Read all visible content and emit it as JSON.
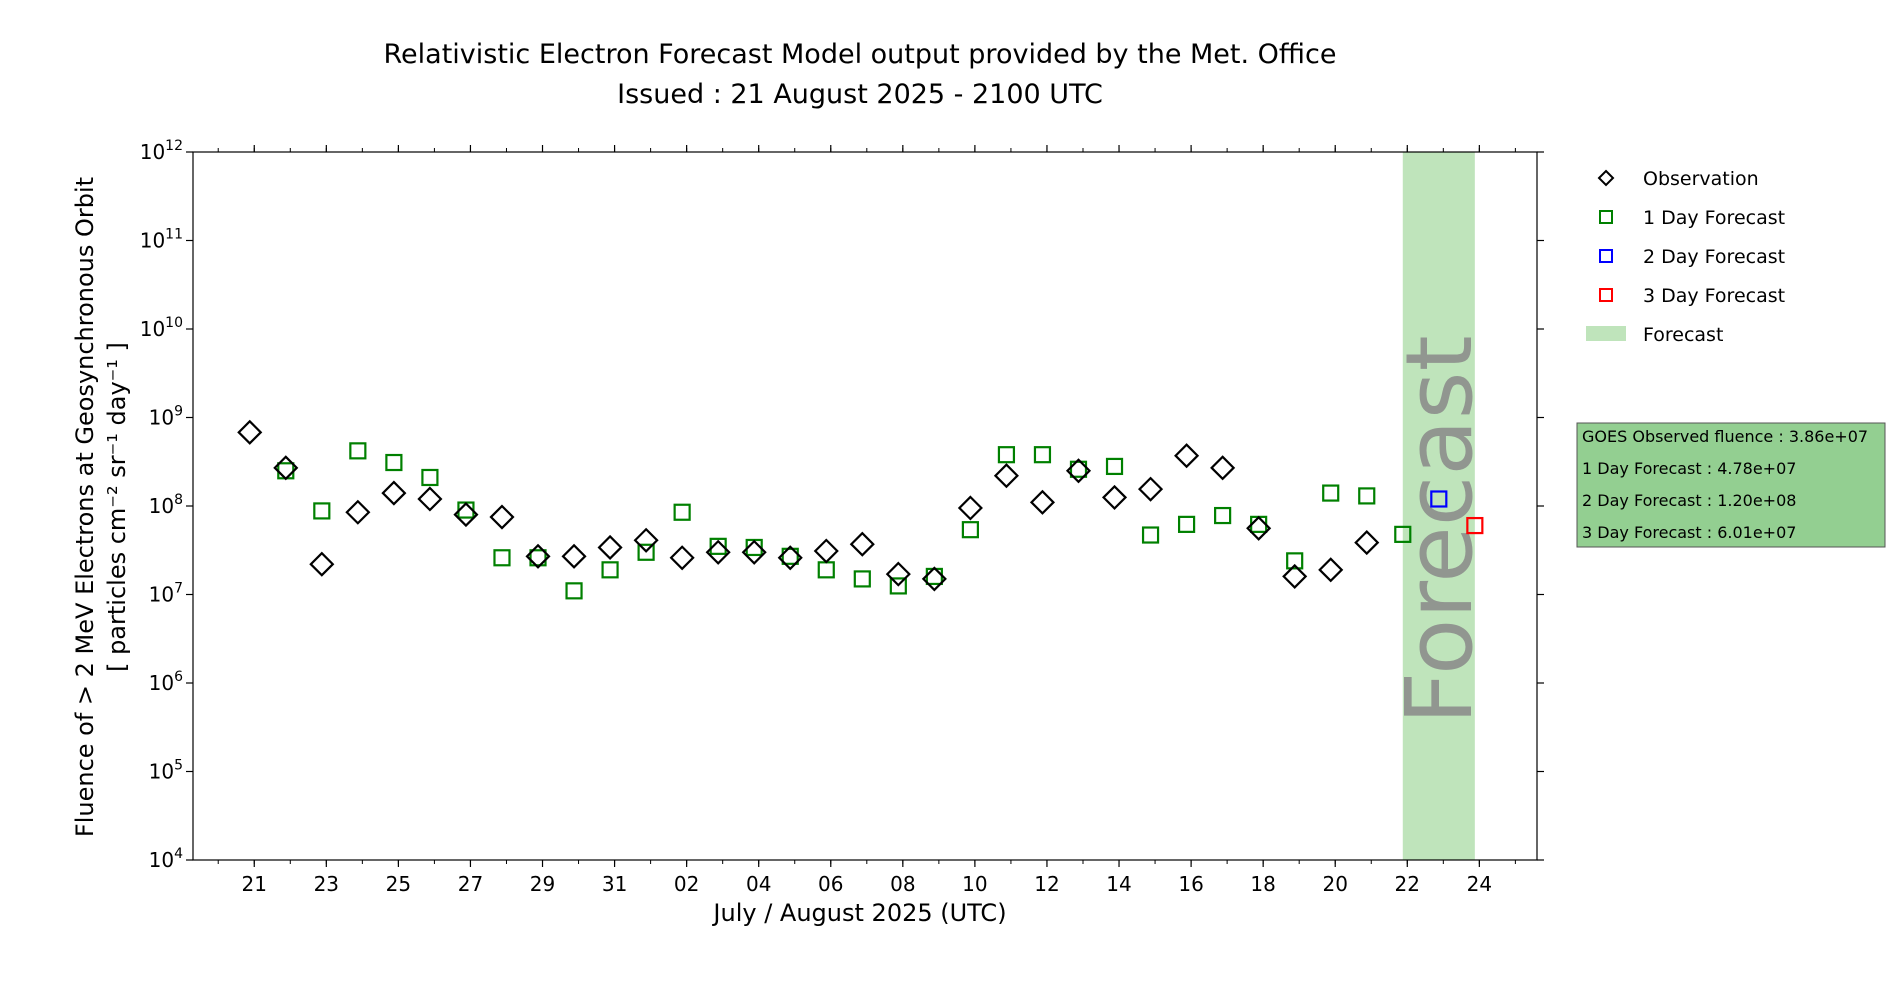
{
  "chart_data": {
    "type": "scatter",
    "title": "Relativistic Electron Forecast Model output provided by the Met. Office",
    "subtitle": "Issued : 21 August 2025 - 2100 UTC",
    "xlabel": "July / August 2025 (UTC)",
    "ylabel_line1": "Fluence of > 2 MeV Electrons at Geosynchronous Orbit",
    "ylabel_line2": "[ particles cm⁻² sr⁻¹ day⁻¹ ]",
    "y_scale": "log",
    "ylim": [
      10000,
      1000000000000
    ],
    "y_ticks": [
      {
        "value": 10000,
        "base": "10",
        "exp": "4"
      },
      {
        "value": 100000,
        "base": "10",
        "exp": "5"
      },
      {
        "value": 1000000,
        "base": "10",
        "exp": "6"
      },
      {
        "value": 10000000,
        "base": "10",
        "exp": "7"
      },
      {
        "value": 100000000,
        "base": "10",
        "exp": "8"
      },
      {
        "value": 1000000000,
        "base": "10",
        "exp": "9"
      },
      {
        "value": 10000000000,
        "base": "10",
        "exp": "10"
      },
      {
        "value": 100000000000,
        "base": "10",
        "exp": "11"
      },
      {
        "value": 1000000000000,
        "base": "10",
        "exp": "12"
      }
    ],
    "xlim": [
      "2025-07-19T07:12",
      "2025-08-25T14:24"
    ],
    "x_ticks": [
      {
        "date": "2025-07-21",
        "label": "21"
      },
      {
        "date": "2025-07-23",
        "label": "23"
      },
      {
        "date": "2025-07-25",
        "label": "25"
      },
      {
        "date": "2025-07-27",
        "label": "27"
      },
      {
        "date": "2025-07-29",
        "label": "29"
      },
      {
        "date": "2025-07-31",
        "label": "31"
      },
      {
        "date": "2025-08-02",
        "label": "02"
      },
      {
        "date": "2025-08-04",
        "label": "04"
      },
      {
        "date": "2025-08-06",
        "label": "06"
      },
      {
        "date": "2025-08-08",
        "label": "08"
      },
      {
        "date": "2025-08-10",
        "label": "10"
      },
      {
        "date": "2025-08-12",
        "label": "12"
      },
      {
        "date": "2025-08-14",
        "label": "14"
      },
      {
        "date": "2025-08-16",
        "label": "16"
      },
      {
        "date": "2025-08-18",
        "label": "18"
      },
      {
        "date": "2025-08-20",
        "label": "20"
      },
      {
        "date": "2025-08-22",
        "label": "22"
      },
      {
        "date": "2025-08-24",
        "label": "24"
      }
    ],
    "forecast_region": {
      "start": "2025-08-21T21:00",
      "end": "2025-08-23T21:00",
      "color": "#bfe4bb",
      "label": "Forecast"
    },
    "series": [
      {
        "name": "Observation",
        "marker": "diamond",
        "color": "#000000",
        "points": [
          {
            "x": "2025-07-20T21:00",
            "y": 680000000
          },
          {
            "x": "2025-07-21T21:00",
            "y": 270000000
          },
          {
            "x": "2025-07-22T21:00",
            "y": 22000000
          },
          {
            "x": "2025-07-23T21:00",
            "y": 85000000
          },
          {
            "x": "2025-07-24T21:00",
            "y": 140000000
          },
          {
            "x": "2025-07-25T21:00",
            "y": 120000000
          },
          {
            "x": "2025-07-26T21:00",
            "y": 80000000
          },
          {
            "x": "2025-07-27T21:00",
            "y": 75000000
          },
          {
            "x": "2025-07-28T21:00",
            "y": 27000000
          },
          {
            "x": "2025-07-29T21:00",
            "y": 27000000
          },
          {
            "x": "2025-07-30T21:00",
            "y": 34000000
          },
          {
            "x": "2025-07-31T21:00",
            "y": 41000000
          },
          {
            "x": "2025-08-01T21:00",
            "y": 26000000
          },
          {
            "x": "2025-08-02T21:00",
            "y": 30000000
          },
          {
            "x": "2025-08-03T21:00",
            "y": 30000000
          },
          {
            "x": "2025-08-04T21:00",
            "y": 26000000
          },
          {
            "x": "2025-08-05T21:00",
            "y": 31000000
          },
          {
            "x": "2025-08-06T21:00",
            "y": 37000000
          },
          {
            "x": "2025-08-07T21:00",
            "y": 17000000
          },
          {
            "x": "2025-08-08T21:00",
            "y": 15000000
          },
          {
            "x": "2025-08-09T21:00",
            "y": 95000000
          },
          {
            "x": "2025-08-10T21:00",
            "y": 220000000
          },
          {
            "x": "2025-08-11T21:00",
            "y": 110000000
          },
          {
            "x": "2025-08-12T21:00",
            "y": 250000000
          },
          {
            "x": "2025-08-13T21:00",
            "y": 125000000
          },
          {
            "x": "2025-08-14T21:00",
            "y": 155000000
          },
          {
            "x": "2025-08-15T21:00",
            "y": 370000000
          },
          {
            "x": "2025-08-16T21:00",
            "y": 270000000
          },
          {
            "x": "2025-08-17T21:00",
            "y": 56000000
          },
          {
            "x": "2025-08-18T21:00",
            "y": 16000000
          },
          {
            "x": "2025-08-19T21:00",
            "y": 19000000
          },
          {
            "x": "2025-08-20T21:00",
            "y": 38600000
          }
        ]
      },
      {
        "name": "1 Day Forecast",
        "marker": "square",
        "color": "#008000",
        "points": [
          {
            "x": "2025-07-21T21:00",
            "y": 250000000
          },
          {
            "x": "2025-07-22T21:00",
            "y": 88000000
          },
          {
            "x": "2025-07-23T21:00",
            "y": 420000000
          },
          {
            "x": "2025-07-24T21:00",
            "y": 310000000
          },
          {
            "x": "2025-07-25T21:00",
            "y": 210000000
          },
          {
            "x": "2025-07-26T21:00",
            "y": 90000000
          },
          {
            "x": "2025-07-27T21:00",
            "y": 26000000
          },
          {
            "x": "2025-07-28T21:00",
            "y": 26000000
          },
          {
            "x": "2025-07-29T21:00",
            "y": 11000000
          },
          {
            "x": "2025-07-30T21:00",
            "y": 19000000
          },
          {
            "x": "2025-07-31T21:00",
            "y": 30000000
          },
          {
            "x": "2025-08-01T21:00",
            "y": 85000000
          },
          {
            "x": "2025-08-02T21:00",
            "y": 35000000
          },
          {
            "x": "2025-08-03T21:00",
            "y": 34000000
          },
          {
            "x": "2025-08-04T21:00",
            "y": 27000000
          },
          {
            "x": "2025-08-05T21:00",
            "y": 19000000
          },
          {
            "x": "2025-08-06T21:00",
            "y": 15000000
          },
          {
            "x": "2025-08-07T21:00",
            "y": 12500000
          },
          {
            "x": "2025-08-08T21:00",
            "y": 16000000
          },
          {
            "x": "2025-08-09T21:00",
            "y": 54000000
          },
          {
            "x": "2025-08-10T21:00",
            "y": 380000000
          },
          {
            "x": "2025-08-11T21:00",
            "y": 380000000
          },
          {
            "x": "2025-08-12T21:00",
            "y": 260000000
          },
          {
            "x": "2025-08-13T21:00",
            "y": 280000000
          },
          {
            "x": "2025-08-14T21:00",
            "y": 47000000
          },
          {
            "x": "2025-08-15T21:00",
            "y": 62000000
          },
          {
            "x": "2025-08-16T21:00",
            "y": 78000000
          },
          {
            "x": "2025-08-17T21:00",
            "y": 62000000
          },
          {
            "x": "2025-08-18T21:00",
            "y": 24000000
          },
          {
            "x": "2025-08-19T21:00",
            "y": 140000000
          },
          {
            "x": "2025-08-20T21:00",
            "y": 130000000
          },
          {
            "x": "2025-08-21T21:00",
            "y": 47800000
          }
        ]
      },
      {
        "name": "2 Day Forecast",
        "marker": "square",
        "color": "#0000ff",
        "points": [
          {
            "x": "2025-08-22T21:00",
            "y": 120000000
          }
        ]
      },
      {
        "name": "3 Day Forecast",
        "marker": "square",
        "color": "#ff0000",
        "points": [
          {
            "x": "2025-08-23T21:00",
            "y": 60100000
          }
        ]
      }
    ],
    "legend": {
      "placement": "outside-right-top",
      "entries": [
        {
          "label": "Observation",
          "marker": "diamond",
          "color": "#000000"
        },
        {
          "label": "1 Day Forecast",
          "marker": "square",
          "color": "#008000"
        },
        {
          "label": "2 Day Forecast",
          "marker": "square",
          "color": "#0000ff"
        },
        {
          "label": "3 Day Forecast",
          "marker": "square",
          "color": "#ff0000"
        },
        {
          "label": "Forecast",
          "marker": "patch",
          "color": "#bfe4bb"
        }
      ]
    },
    "info_box": {
      "background": "#93cf91",
      "lines": [
        "GOES Observed fluence : 3.86e+07",
        "1 Day Forecast : 4.78e+07",
        "2 Day Forecast : 1.20e+08",
        "3 Day Forecast : 6.01e+07"
      ]
    },
    "grid": false
  }
}
